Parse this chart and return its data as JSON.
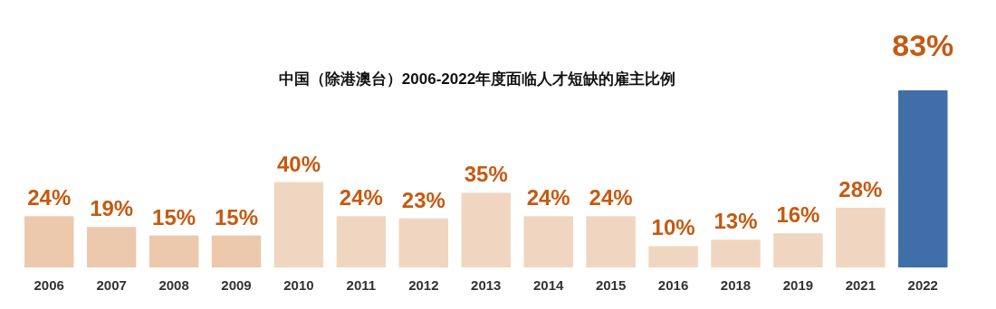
{
  "chart_data": {
    "type": "bar",
    "title": "中国（除港澳台）2006-2022年度面临人才短缺的雇主比例",
    "categories": [
      "2006",
      "2007",
      "2008",
      "2009",
      "2010",
      "2011",
      "2012",
      "2013",
      "2014",
      "2015",
      "2016",
      "2018",
      "2019",
      "2021",
      "2022"
    ],
    "values": [
      24,
      19,
      15,
      15,
      40,
      24,
      23,
      35,
      24,
      24,
      10,
      13,
      16,
      28,
      83
    ],
    "value_labels": [
      "24%",
      "19%",
      "15%",
      "15%",
      "40%",
      "24%",
      "23%",
      "35%",
      "24%",
      "24%",
      "10%",
      "13%",
      "16%",
      "28%",
      "83%"
    ],
    "colors": [
      "#ecc9ad",
      "#ecc9ad",
      "#ecc9ad",
      "#ecc9ad",
      "#f0d6c0",
      "#f0d6c0",
      "#f0d6c0",
      "#f0d6c0",
      "#f0d6c0",
      "#f0d6c0",
      "#f0d6c0",
      "#f0d6c0",
      "#f0d6c0",
      "#f0d6c0",
      "#3f6ea8"
    ],
    "orientation": "vertical"
  }
}
